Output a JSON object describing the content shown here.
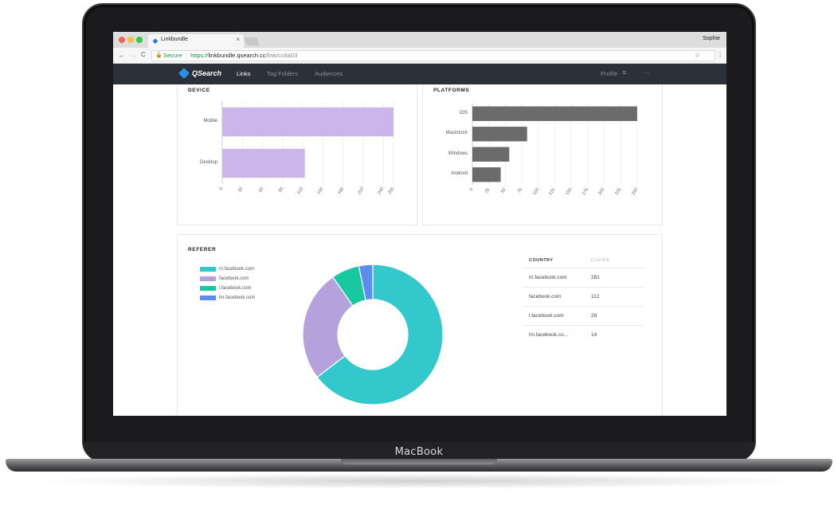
{
  "device_brand": "MacBook",
  "browser": {
    "tab_title": "Linkbundle",
    "tab_close": "×",
    "profile_name": "Sophie",
    "secure_label": "Secure",
    "url_proto": "https://",
    "url_host": "linkbundle.qsearch.cc",
    "url_path": "/link/cc6a03",
    "back": "←",
    "forward": "→",
    "reload": "C",
    "star": "☆",
    "menu": "⋮"
  },
  "navbar": {
    "logo_text": "QSearch",
    "links": [
      {
        "label": "Links",
        "active": true
      },
      {
        "label": "Tag Folders",
        "active": false
      },
      {
        "label": "Audiences",
        "active": false
      }
    ],
    "profile_label": "Profile",
    "filter_icon": "≡",
    "more_icon": "··"
  },
  "device_card": {
    "title": "DEVICE"
  },
  "platforms_card": {
    "title": "PLATFORMS"
  },
  "referer_card": {
    "title": "REFERER",
    "table": {
      "col_country": "COUNTRY",
      "col_clicks": "CLICKS",
      "rows": [
        {
          "name": "m.facebook.com",
          "clicks": "281"
        },
        {
          "name": "facebook.com",
          "clicks": "112"
        },
        {
          "name": "l.facebook.com",
          "clicks": "28"
        },
        {
          "name": "lm.facebook.co...",
          "clicks": "14"
        }
      ]
    }
  },
  "chart_data": [
    {
      "type": "bar",
      "orientation": "horizontal",
      "title": "DEVICE",
      "categories": [
        "Mobile",
        "Desktop"
      ],
      "values": [
        255,
        123
      ],
      "xlim": [
        0,
        255
      ],
      "ticks": [
        "0",
        "30",
        "60",
        "90",
        "120",
        "150",
        "180",
        "210",
        "240",
        "255"
      ],
      "grid": true,
      "color": "#cbb5ea"
    },
    {
      "type": "bar",
      "orientation": "horizontal",
      "title": "PLATFORMS",
      "categories": [
        "iOS",
        "Macintosh",
        "Windows",
        "Android"
      ],
      "values": [
        250,
        83,
        56,
        43
      ],
      "xlim": [
        0,
        255
      ],
      "ticks": [
        "0",
        "25",
        "50",
        "75",
        "100",
        "125",
        "150",
        "175",
        "200",
        "225",
        "250"
      ],
      "grid": true,
      "color": "#6b6b6b"
    },
    {
      "type": "pie",
      "subtype": "donut",
      "title": "REFERER",
      "legend_position": "top-left",
      "categories": [
        "m.facebook.com",
        "facebook.com",
        "l.facebook.com",
        "lm.facebook.com"
      ],
      "values": [
        281,
        112,
        28,
        14
      ],
      "colors": [
        "#33c9cc",
        "#b5a2dd",
        "#17c8a0",
        "#5b8def"
      ]
    }
  ]
}
